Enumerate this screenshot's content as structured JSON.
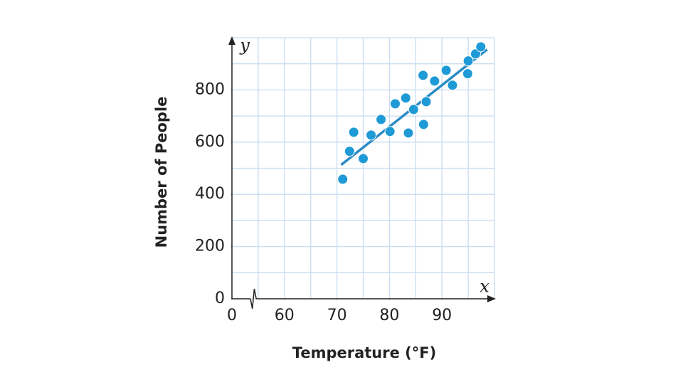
{
  "chart_data": {
    "type": "scatter",
    "x_label": "Temperature (°F)",
    "y_label": "Number of People",
    "x_axis_name": "x",
    "y_axis_name": "y",
    "xlim": [
      50,
      100
    ],
    "ylim": [
      0,
      1000
    ],
    "xticks": [
      {
        "value": 50,
        "label": "0"
      },
      60,
      70,
      80,
      90
    ],
    "yticks": [
      0,
      200,
      400,
      600,
      800
    ],
    "grid_x": [
      50,
      55,
      60,
      65,
      70,
      75,
      80,
      85,
      90,
      95,
      100
    ],
    "grid_y": [
      0,
      100,
      200,
      300,
      400,
      500,
      600,
      700,
      800,
      900,
      1000
    ],
    "x_axis_break": true,
    "color": "#1e9ad6",
    "x": [
      71.1,
      72.4,
      73.2,
      75.0,
      76.5,
      78.4,
      80.1,
      81.1,
      83.1,
      83.6,
      84.6,
      86.4,
      86.5,
      87.0,
      88.6,
      90.8,
      92.0,
      94.9,
      95.0,
      96.4,
      97.4
    ],
    "values": [
      458,
      565,
      638,
      537,
      627,
      687,
      641,
      747,
      769,
      635,
      725,
      856,
      668,
      755,
      834,
      875,
      818,
      862,
      911,
      938,
      965
    ],
    "trend_line": {
      "x": [
        70.8,
        98.6
      ],
      "values": [
        513,
        955
      ],
      "color": "#2a8cc4"
    }
  }
}
